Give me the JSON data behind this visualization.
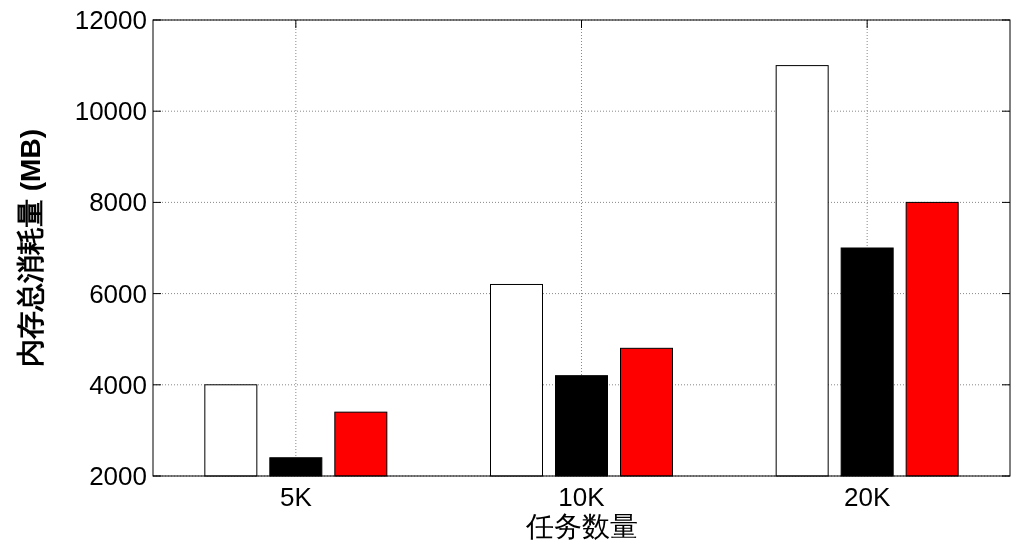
{
  "chart_data": {
    "type": "bar",
    "xlabel": "任务数量",
    "ylabel": "内存总消耗量 (MB)",
    "categories": [
      "5K",
      "10K",
      "20K"
    ],
    "series": [
      {
        "color": "#ffffff",
        "values": [
          4000,
          6200,
          11000
        ]
      },
      {
        "color": "#000000",
        "values": [
          2400,
          4200,
          7000
        ]
      },
      {
        "color": "#ff0000",
        "values": [
          3400,
          4800,
          8000
        ]
      }
    ],
    "ylim": [
      2000,
      12000
    ],
    "yticks": [
      2000,
      4000,
      6000,
      8000,
      10000,
      12000
    ],
    "grid": true
  }
}
